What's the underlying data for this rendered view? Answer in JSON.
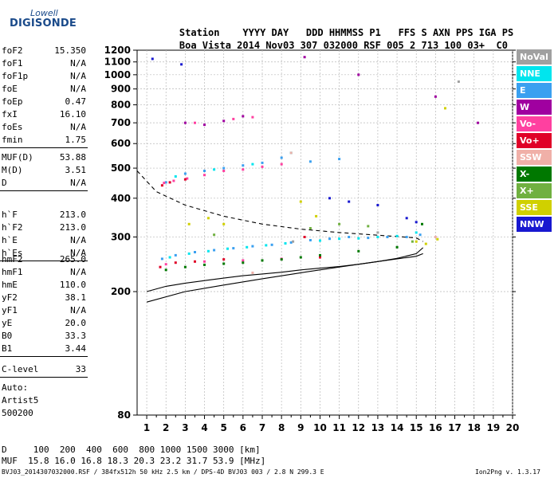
{
  "logo": {
    "top": "Lowell",
    "bottom": "DIGISONDE"
  },
  "header": {
    "labels": [
      "Station",
      "YYYY",
      "DAY",
      "DDD",
      "HHMMSS",
      "P1",
      "FFS",
      "S",
      "AXN",
      "PPS",
      "IGA",
      "PS"
    ],
    "values": [
      "Boa Vista",
      "2014",
      "Nov03",
      "307",
      "032000",
      "RSF",
      "005",
      "2",
      "713",
      "100",
      "03+",
      "C0"
    ]
  },
  "params_1": [
    {
      "name": "foF2",
      "value": "15.350"
    },
    {
      "name": "foF1",
      "value": "N/A"
    },
    {
      "name": "foF1p",
      "value": "N/A"
    },
    {
      "name": "foE",
      "value": "N/A"
    },
    {
      "name": "foEp",
      "value": "0.47"
    },
    {
      "name": "fxI",
      "value": "16.10"
    },
    {
      "name": "foEs",
      "value": "N/A"
    },
    {
      "name": "fmin",
      "value": "1.75"
    }
  ],
  "params_2": [
    {
      "name": "MUF(D)",
      "value": "53.88"
    },
    {
      "name": "M(D)",
      "value": "3.51"
    },
    {
      "name": "D",
      "value": "N/A"
    }
  ],
  "params_3": [
    {
      "name": "h`F",
      "value": "213.0"
    },
    {
      "name": "h`F2",
      "value": "213.0"
    },
    {
      "name": "h`E",
      "value": "N/A"
    },
    {
      "name": "h`Es",
      "value": "N/A"
    }
  ],
  "params_4": [
    {
      "name": "hmF2",
      "value": "265.0"
    },
    {
      "name": "hmF1",
      "value": "N/A"
    },
    {
      "name": "hmE",
      "value": "110.0"
    },
    {
      "name": "yF2",
      "value": "38.1"
    },
    {
      "name": "yF1",
      "value": "N/A"
    },
    {
      "name": "yE",
      "value": "20.0"
    },
    {
      "name": "B0",
      "value": "33.3"
    },
    {
      "name": "B1",
      "value": "3.44"
    }
  ],
  "params_5": [
    {
      "name": "C-level",
      "value": "33"
    }
  ],
  "autoscaling": {
    "line1": "Auto:",
    "line2": "Artist5",
    "line3": "500200"
  },
  "legend": [
    {
      "label": "NoVal",
      "color": "#a0a0a0"
    },
    {
      "label": "NNE",
      "color": "#00e5ee"
    },
    {
      "label": "E",
      "color": "#3aa0f0"
    },
    {
      "label": "W",
      "color": "#a000a0"
    },
    {
      "label": "Vo-",
      "color": "#ff40a0"
    },
    {
      "label": "Vo+",
      "color": "#e00028"
    },
    {
      "label": "SSW",
      "color": "#f0b0a8"
    },
    {
      "label": "X-",
      "color": "#007800"
    },
    {
      "label": "X+",
      "color": "#70b040"
    },
    {
      "label": "SSE",
      "color": "#d0d000"
    },
    {
      "label": "NNW",
      "color": "#1818d0"
    }
  ],
  "muf_table": {
    "row1_label": "D",
    "row1_values": [
      "100",
      "200",
      "400",
      "600",
      "800",
      "1000",
      "1500",
      "3000"
    ],
    "row1_unit": "[km]",
    "row2_label": "MUF",
    "row2_values": [
      "15.8",
      "16.0",
      "16.8",
      "18.3",
      "20.3",
      "23.2",
      "31.7",
      "53.9"
    ],
    "row2_unit": "[MHz]"
  },
  "footer": {
    "left": "BVJ03_2014307032000.RSF / 384fx512h 50 kHz 2.5 km / DPS-4D BVJ03 003 / 2.8 N 299.3 E",
    "right": "Ion2Png v. 1.3.17"
  },
  "chart_data": {
    "type": "scatter",
    "title": "",
    "xlabel": "",
    "ylabel": "",
    "xlim": [
      0.5,
      20
    ],
    "ylim": [
      80,
      1200
    ],
    "y_scale": "log",
    "x_ticks": [
      1,
      2,
      3,
      4,
      5,
      6,
      7,
      8,
      9,
      10,
      11,
      12,
      13,
      14,
      15,
      16,
      17,
      18,
      19,
      20
    ],
    "y_ticks": [
      80,
      200,
      300,
      400,
      500,
      600,
      700,
      800,
      900,
      1000,
      1100,
      1200
    ],
    "grid": true,
    "legend_position": "right",
    "series": [
      {
        "name": "E",
        "color": "#3aa0f0",
        "points": [
          [
            1.8,
            255
          ],
          [
            2.5,
            262
          ],
          [
            3.5,
            268
          ],
          [
            4.5,
            272
          ],
          [
            5.5,
            276
          ],
          [
            6.5,
            280
          ],
          [
            7.5,
            283
          ],
          [
            8.5,
            288
          ],
          [
            9.5,
            293
          ],
          [
            10.5,
            296
          ],
          [
            11.5,
            300
          ],
          [
            12.5,
            298
          ],
          [
            13.5,
            300
          ],
          [
            14.5,
            300
          ],
          [
            15.2,
            305
          ],
          [
            2.0,
            450
          ],
          [
            3.0,
            480
          ],
          [
            4.0,
            490
          ],
          [
            5.0,
            500
          ],
          [
            6.0,
            510
          ],
          [
            7.0,
            520
          ],
          [
            8.0,
            540
          ],
          [
            9.5,
            525
          ],
          [
            11.0,
            535
          ]
        ]
      },
      {
        "name": "NNE",
        "color": "#00e5ee",
        "points": [
          [
            2.2,
            258
          ],
          [
            3.2,
            265
          ],
          [
            4.2,
            270
          ],
          [
            5.2,
            275
          ],
          [
            6.2,
            278
          ],
          [
            7.2,
            282
          ],
          [
            8.2,
            286
          ],
          [
            10.0,
            292
          ],
          [
            11.0,
            296
          ],
          [
            12.0,
            297
          ],
          [
            13.0,
            300
          ],
          [
            14.0,
            302
          ],
          [
            15.0,
            310
          ],
          [
            2.5,
            470
          ],
          [
            4.5,
            495
          ],
          [
            6.5,
            515
          ],
          [
            8.5,
            560
          ]
        ]
      },
      {
        "name": "Vo-",
        "color": "#ff40a0",
        "points": [
          [
            1.9,
            448
          ],
          [
            2.4,
            455
          ],
          [
            3.1,
            463
          ],
          [
            4.0,
            475
          ],
          [
            5.0,
            490
          ],
          [
            6.0,
            495
          ],
          [
            7.0,
            505
          ],
          [
            8.0,
            515
          ],
          [
            2.0,
            245
          ],
          [
            4.0,
            250
          ],
          [
            6.0,
            252
          ],
          [
            8.0,
            255
          ],
          [
            10.0,
            258
          ],
          [
            3.5,
            700
          ],
          [
            5.5,
            720
          ],
          [
            6.5,
            730
          ]
        ]
      },
      {
        "name": "Vo+",
        "color": "#e00028",
        "points": [
          [
            1.8,
            440
          ],
          [
            2.2,
            450
          ],
          [
            3.0,
            460
          ],
          [
            1.7,
            240
          ],
          [
            2.5,
            248
          ],
          [
            3.5,
            250
          ],
          [
            5.0,
            254
          ],
          [
            9.2,
            300
          ],
          [
            10.0,
            258
          ]
        ]
      },
      {
        "name": "W",
        "color": "#a000a0",
        "points": [
          [
            3.0,
            700
          ],
          [
            4.0,
            690
          ],
          [
            5.0,
            710
          ],
          [
            6.0,
            735
          ],
          [
            9.2,
            1140
          ],
          [
            12.0,
            1000
          ],
          [
            16.0,
            850
          ],
          [
            18.2,
            700
          ]
        ]
      },
      {
        "name": "X-",
        "color": "#007800",
        "points": [
          [
            2.0,
            235
          ],
          [
            3.0,
            240
          ],
          [
            4.0,
            244
          ],
          [
            5.0,
            246
          ],
          [
            6.0,
            248
          ],
          [
            7.0,
            252
          ],
          [
            8.0,
            254
          ],
          [
            9.0,
            258
          ],
          [
            10.0,
            262
          ],
          [
            12.0,
            270
          ],
          [
            14.0,
            278
          ],
          [
            15.3,
            330
          ]
        ]
      },
      {
        "name": "X+",
        "color": "#70b040",
        "points": [
          [
            4.5,
            305
          ],
          [
            9.5,
            320
          ],
          [
            11.0,
            330
          ],
          [
            12.5,
            325
          ],
          [
            14.8,
            290
          ]
        ]
      },
      {
        "name": "SSE",
        "color": "#d0d000",
        "points": [
          [
            3.2,
            330
          ],
          [
            4.2,
            345
          ],
          [
            5.0,
            330
          ],
          [
            9.0,
            390
          ],
          [
            9.8,
            350
          ],
          [
            15.0,
            290
          ],
          [
            15.5,
            285
          ],
          [
            16.1,
            295
          ],
          [
            16.5,
            780
          ]
        ]
      },
      {
        "name": "NNW",
        "color": "#1818d0",
        "points": [
          [
            10.5,
            400
          ],
          [
            11.5,
            390
          ],
          [
            13.0,
            380
          ],
          [
            14.5,
            345
          ],
          [
            15.0,
            335
          ],
          [
            1.3,
            1125
          ],
          [
            2.8,
            1080
          ]
        ]
      },
      {
        "name": "SSW",
        "color": "#f0b0a8",
        "points": [
          [
            6.5,
            230
          ],
          [
            8.5,
            560
          ],
          [
            16.0,
            300
          ]
        ]
      },
      {
        "name": "NoVal",
        "color": "#a0a0a0",
        "points": [
          [
            8.6,
            290
          ],
          [
            13.0,
            310
          ],
          [
            17.2,
            950
          ]
        ]
      }
    ],
    "curves": [
      {
        "style": "solid",
        "points": [
          [
            1.0,
            200
          ],
          [
            2.0,
            208
          ],
          [
            3.0,
            213
          ],
          [
            4.0,
            217
          ],
          [
            5.0,
            221
          ],
          [
            6.0,
            225
          ],
          [
            7.0,
            228
          ],
          [
            8.0,
            231
          ],
          [
            9.0,
            235
          ],
          [
            10.0,
            238
          ],
          [
            11.0,
            241
          ],
          [
            12.0,
            245
          ],
          [
            13.0,
            250
          ],
          [
            14.0,
            256
          ],
          [
            15.0,
            265
          ],
          [
            15.35,
            277
          ]
        ]
      },
      {
        "style": "solid",
        "points": [
          [
            1.0,
            185
          ],
          [
            3.0,
            200
          ],
          [
            5.0,
            210
          ],
          [
            7.0,
            220
          ],
          [
            9.0,
            230
          ],
          [
            11.0,
            240
          ],
          [
            13.0,
            250
          ],
          [
            15.0,
            260
          ],
          [
            15.35,
            265
          ]
        ]
      },
      {
        "style": "dashed",
        "points": [
          [
            0.5,
            490
          ],
          [
            1.5,
            420
          ],
          [
            3.0,
            380
          ],
          [
            5.0,
            350
          ],
          [
            7.0,
            330
          ],
          [
            9.0,
            318
          ],
          [
            11.0,
            310
          ],
          [
            13.0,
            304
          ],
          [
            15.0,
            298
          ],
          [
            15.35,
            290
          ]
        ]
      }
    ]
  }
}
